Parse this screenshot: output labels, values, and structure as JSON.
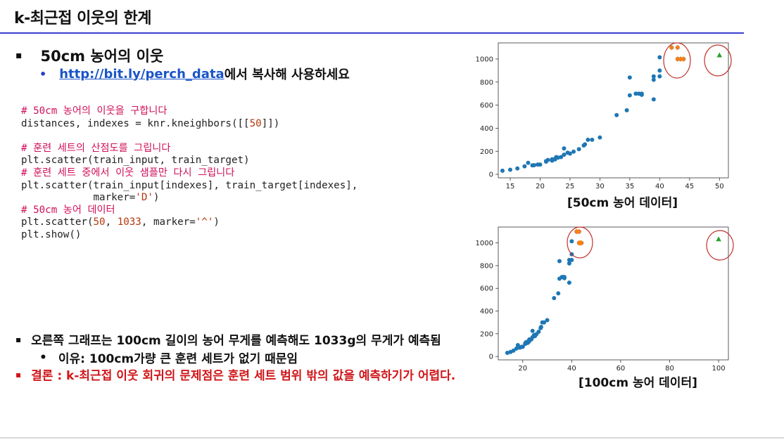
{
  "slide": {
    "title": "k-최근접 이웃의 한계",
    "bullet1": {
      "marker": "▪",
      "text": "50cm 농어의 이웃"
    },
    "bullet1_sub": {
      "marker": "•",
      "link": "http://bit.ly/perch_data",
      "suffix": "에서 복사해 사용하세요"
    },
    "bottom_bullets": [
      {
        "marker": "▪",
        "text": "오른쪽 그래프는 100cm 길이의 농어 무게를 예측해도 1033g의 무게가 예측됨"
      },
      {
        "marker": "•",
        "text": "이유: 100cm가량 큰 훈련 세트가 없기 때문임"
      },
      {
        "marker": "▪",
        "text": "결론 : k-최근접 이웃 회귀의 문제점은 훈련 세트 범위 밖의 값을 예측하기가 어렵다."
      }
    ],
    "colors": {
      "title_rule": "#3b3fd0",
      "link": "#1a55c8",
      "conclusion": "#d0161a",
      "code_comment": "#d1105a",
      "code_number": "#b5380f"
    }
  },
  "code": {
    "lines": [
      [
        {
          "t": "# 50cm 농어의 이웃을 구합니다",
          "k": "c"
        }
      ],
      [
        {
          "t": "distances, indexes = knr.kneighbors([["
        },
        {
          "t": "50",
          "k": "n"
        },
        {
          "t": "]])"
        }
      ],
      [
        {
          "t": ""
        }
      ],
      [
        {
          "t": "# 훈련 세트의 산점도를 그립니다",
          "k": "c"
        }
      ],
      [
        {
          "t": "plt.scatter(train_input, train_target)"
        }
      ],
      [
        {
          "t": "# 훈련 세트 중에서 이웃 샘플만 다시 그립니다",
          "k": "c"
        }
      ],
      [
        {
          "t": "plt.scatter(train_input[indexes], train_target[indexes],"
        }
      ],
      [
        {
          "t": "            marker="
        },
        {
          "t": "'D'",
          "k": "s"
        },
        {
          "t": ")"
        }
      ],
      [
        {
          "t": "# 50cm 농어 데이터",
          "k": "c"
        }
      ],
      [
        {
          "t": "plt.scatter("
        },
        {
          "t": "50",
          "k": "n"
        },
        {
          "t": ", "
        },
        {
          "t": "1033",
          "k": "n"
        },
        {
          "t": ", marker="
        },
        {
          "t": "'^'",
          "k": "s"
        },
        {
          "t": ")"
        }
      ],
      [
        {
          "t": "plt.show()"
        }
      ]
    ]
  },
  "chart_data": [
    {
      "type": "scatter",
      "caption": "[50cm 농어 데이터]",
      "xticks": [
        15,
        20,
        25,
        30,
        35,
        40,
        45,
        50
      ],
      "yticks": [
        0,
        200,
        400,
        600,
        800,
        1000
      ],
      "xlim": [
        13,
        51.5
      ],
      "ylim": [
        -30,
        1140
      ],
      "colors": {
        "train": "#1f77b4",
        "neighbors": "#ff7f0e",
        "query": "#2ca02c",
        "circle": "#c0302b"
      },
      "series": [
        {
          "marker": "circle",
          "points": [
            [
              13.7,
              32
            ],
            [
              15,
              40
            ],
            [
              16.2,
              51.5
            ],
            [
              17.4,
              70
            ],
            [
              18,
              100
            ],
            [
              18.7,
              78
            ],
            [
              19,
              80
            ],
            [
              19.6,
              85
            ],
            [
              20,
              85
            ],
            [
              21,
              110
            ],
            [
              21,
              115
            ],
            [
              21.3,
              125
            ],
            [
              22,
              130
            ],
            [
              22,
              120
            ],
            [
              22,
              120
            ],
            [
              22,
              130
            ],
            [
              22.5,
              135
            ],
            [
              22.5,
              130
            ],
            [
              22.7,
              150
            ],
            [
              23,
              145
            ],
            [
              23.5,
              150
            ],
            [
              24,
              170
            ],
            [
              24,
              225
            ],
            [
              24.6,
              188
            ],
            [
              25,
              180
            ],
            [
              25.6,
              197
            ],
            [
              26.5,
              218
            ],
            [
              27.3,
              250
            ],
            [
              27.5,
              260
            ],
            [
              28,
              300
            ],
            [
              28.7,
              300
            ],
            [
              30,
              320
            ],
            [
              32.8,
              514
            ],
            [
              34.5,
              556
            ],
            [
              35,
              840
            ],
            [
              35,
              685
            ],
            [
              36.5,
              700
            ],
            [
              36,
              700
            ],
            [
              37,
              700
            ],
            [
              37,
              690
            ],
            [
              39,
              650
            ],
            [
              39,
              820
            ],
            [
              39,
              850
            ],
            [
              40,
              900
            ],
            [
              40,
              850
            ],
            [
              40,
              1015
            ],
            [
              42,
              1100
            ],
            [
              43,
              1000
            ],
            [
              43,
              1100
            ],
            [
              43.5,
              1000
            ],
            [
              44,
              1000
            ]
          ]
        },
        {
          "marker": "diamond",
          "points": [
            [
              42,
              1100
            ],
            [
              43,
              1100
            ],
            [
              43,
              1000
            ],
            [
              43.5,
              1000
            ],
            [
              44,
              1000
            ]
          ]
        },
        {
          "marker": "triangle",
          "points": [
            [
              50,
              1033
            ]
          ]
        }
      ]
    },
    {
      "type": "scatter",
      "caption": "[100cm 농어 데이터]",
      "xticks": [
        20,
        40,
        60,
        80,
        100
      ],
      "yticks": [
        0,
        200,
        400,
        600,
        800,
        1000
      ],
      "xlim": [
        10,
        104
      ],
      "ylim": [
        -30,
        1140
      ],
      "colors": {
        "train": "#1f77b4",
        "neighbors": "#ff7f0e",
        "query": "#2ca02c",
        "circle": "#c0302b"
      },
      "series": [
        {
          "marker": "circle",
          "points": [
            [
              13.7,
              32
            ],
            [
              15,
              40
            ],
            [
              16.2,
              51.5
            ],
            [
              17.4,
              70
            ],
            [
              18,
              100
            ],
            [
              18.7,
              78
            ],
            [
              19,
              80
            ],
            [
              19.6,
              85
            ],
            [
              20,
              85
            ],
            [
              21,
              110
            ],
            [
              21,
              115
            ],
            [
              21.3,
              125
            ],
            [
              22,
              130
            ],
            [
              22,
              120
            ],
            [
              22,
              120
            ],
            [
              22,
              130
            ],
            [
              22.5,
              135
            ],
            [
              22.5,
              130
            ],
            [
              22.7,
              150
            ],
            [
              23,
              145
            ],
            [
              23.5,
              150
            ],
            [
              24,
              170
            ],
            [
              24,
              225
            ],
            [
              24.6,
              188
            ],
            [
              25,
              180
            ],
            [
              25.6,
              197
            ],
            [
              26.5,
              218
            ],
            [
              27.3,
              250
            ],
            [
              27.5,
              260
            ],
            [
              28,
              300
            ],
            [
              28.7,
              300
            ],
            [
              30,
              320
            ],
            [
              32.8,
              514
            ],
            [
              34.5,
              556
            ],
            [
              35,
              840
            ],
            [
              35,
              685
            ],
            [
              36.5,
              700
            ],
            [
              36,
              700
            ],
            [
              37,
              700
            ],
            [
              37,
              690
            ],
            [
              39,
              650
            ],
            [
              39,
              820
            ],
            [
              39,
              850
            ],
            [
              40,
              900
            ],
            [
              40,
              850
            ],
            [
              40,
              1015
            ],
            [
              42,
              1100
            ],
            [
              43,
              1000
            ],
            [
              43,
              1100
            ],
            [
              43.5,
              1000
            ],
            [
              44,
              1000
            ]
          ]
        },
        {
          "marker": "diamond",
          "points": [
            [
              42,
              1100
            ],
            [
              43,
              1100
            ],
            [
              43,
              1000
            ],
            [
              43.5,
              1000
            ],
            [
              44,
              1000
            ]
          ]
        },
        {
          "marker": "triangle",
          "points": [
            [
              100,
              1033
            ]
          ]
        }
      ]
    }
  ]
}
